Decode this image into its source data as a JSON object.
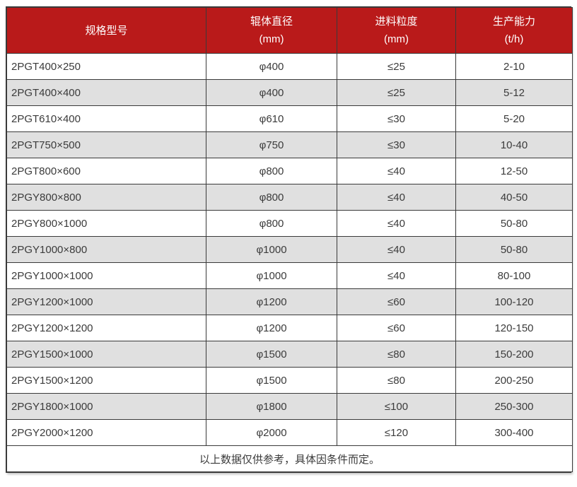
{
  "colors": {
    "header_bg": "#b91a1a",
    "header_text": "#ffffff",
    "alt_row_bg": "#e0e0e0",
    "body_text": "#3b3b3b",
    "border": "#3a3a3a"
  },
  "table": {
    "columns": [
      {
        "label": "规格型号",
        "unit": ""
      },
      {
        "label": "辊体直径",
        "unit": "(mm)"
      },
      {
        "label": "进料粒度",
        "unit": "(mm)"
      },
      {
        "label": "生产能力",
        "unit": "(t/h)"
      }
    ],
    "rows": [
      [
        "2PGT400×250",
        "φ400",
        "≤25",
        "2-10"
      ],
      [
        "2PGT400×400",
        "φ400",
        "≤25",
        "5-12"
      ],
      [
        "2PGT610×400",
        "φ610",
        "≤30",
        "5-20"
      ],
      [
        "2PGT750×500",
        "φ750",
        "≤30",
        "10-40"
      ],
      [
        "2PGT800×600",
        "φ800",
        "≤40",
        "12-50"
      ],
      [
        "2PGY800×800",
        "φ800",
        "≤40",
        "40-50"
      ],
      [
        "2PGY800×1000",
        "φ800",
        "≤40",
        "50-80"
      ],
      [
        "2PGY1000×800",
        "φ1000",
        "≤40",
        "50-80"
      ],
      [
        "2PGY1000×1000",
        "φ1000",
        "≤40",
        "80-100"
      ],
      [
        "2PGY1200×1000",
        "φ1200",
        "≤60",
        "100-120"
      ],
      [
        "2PGY1200×1200",
        "φ1200",
        "≤60",
        "120-150"
      ],
      [
        "2PGY1500×1000",
        "φ1500",
        "≤80",
        "150-200"
      ],
      [
        "2PGY1500×1200",
        "φ1500",
        "≤80",
        "200-250"
      ],
      [
        "2PGY1800×1000",
        "φ1800",
        "≤100",
        "250-300"
      ],
      [
        "2PGY2000×1200",
        "φ2000",
        "≤120",
        "300-400"
      ]
    ],
    "footnote": "以上数据仅供参考，具体因条件而定。"
  },
  "chart_data": {
    "type": "table",
    "title": "",
    "columns": [
      "规格型号",
      "辊体直径 (mm)",
      "进料粒度 (mm)",
      "生产能力 (t/h)"
    ],
    "rows": [
      [
        "2PGT400×250",
        "φ400",
        "≤25",
        "2-10"
      ],
      [
        "2PGT400×400",
        "φ400",
        "≤25",
        "5-12"
      ],
      [
        "2PGT610×400",
        "φ610",
        "≤30",
        "5-20"
      ],
      [
        "2PGT750×500",
        "φ750",
        "≤30",
        "10-40"
      ],
      [
        "2PGT800×600",
        "φ800",
        "≤40",
        "12-50"
      ],
      [
        "2PGY800×800",
        "φ800",
        "≤40",
        "40-50"
      ],
      [
        "2PGY800×1000",
        "φ800",
        "≤40",
        "50-80"
      ],
      [
        "2PGY1000×800",
        "φ1000",
        "≤40",
        "50-80"
      ],
      [
        "2PGY1000×1000",
        "φ1000",
        "≤40",
        "80-100"
      ],
      [
        "2PGY1200×1000",
        "φ1200",
        "≤60",
        "100-120"
      ],
      [
        "2PGY1200×1200",
        "φ1200",
        "≤60",
        "120-150"
      ],
      [
        "2PGY1500×1000",
        "φ1500",
        "≤80",
        "150-200"
      ],
      [
        "2PGY1500×1200",
        "φ1500",
        "≤80",
        "200-250"
      ],
      [
        "2PGY1800×1000",
        "φ1800",
        "≤100",
        "250-300"
      ],
      [
        "2PGY2000×1200",
        "φ2000",
        "≤120",
        "300-400"
      ]
    ],
    "footnote": "以上数据仅供参考，具体因条件而定。"
  }
}
